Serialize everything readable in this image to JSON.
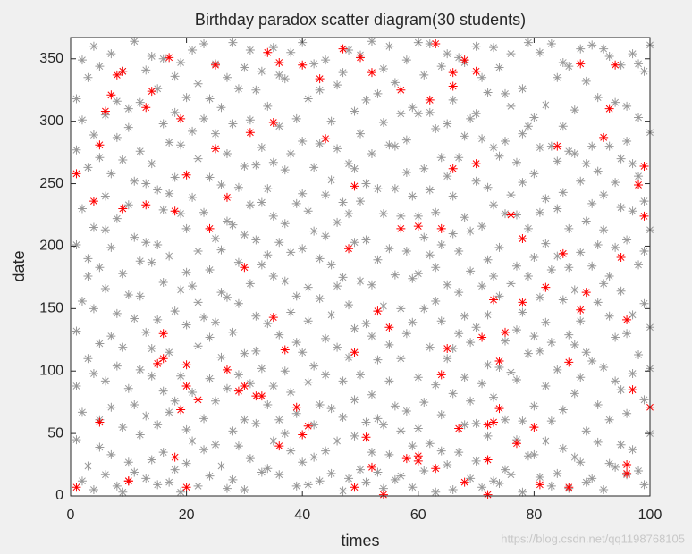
{
  "chart_data": {
    "type": "scatter",
    "title": "Birthday paradox scatter diagram(30 students)",
    "x_label": "times",
    "y_label": "date",
    "watermark": "https://blog.csdn.net/qq1198768105",
    "xlim": [
      0,
      100
    ],
    "xticks": [
      0,
      20,
      40,
      60,
      80,
      100
    ],
    "ylim": [
      0,
      367
    ],
    "yticks": [
      0,
      50,
      100,
      150,
      200,
      250,
      300,
      350
    ],
    "marker": "asterisk",
    "grid": false,
    "x": [
      1,
      2,
      3,
      4,
      5,
      6,
      7,
      8,
      9,
      10,
      11,
      12,
      13,
      14,
      15,
      16,
      17,
      18,
      19,
      20,
      21,
      22,
      23,
      24,
      25,
      26,
      27,
      28,
      29,
      30,
      31,
      32,
      33,
      34,
      35,
      36,
      37,
      38,
      39,
      40,
      41,
      42,
      43,
      44,
      45,
      46,
      47,
      48,
      49,
      50,
      51,
      52,
      53,
      54,
      55,
      56,
      57,
      58,
      59,
      60,
      61,
      62,
      63,
      64,
      65,
      66,
      67,
      68,
      69,
      70,
      71,
      72,
      73,
      74,
      75,
      76,
      77,
      78,
      79,
      80,
      81,
      82,
      83,
      84,
      85,
      86,
      87,
      88,
      89,
      90,
      91,
      92,
      93,
      94,
      95,
      96,
      97,
      98,
      99,
      100
    ],
    "series": [
      {
        "color": "#999999",
        "values": [
          45,
          12,
          190,
          98,
          271,
          17,
          128,
          287,
          55,
          233,
          142,
          315,
          64,
          187,
          245,
          84,
          11,
          336,
          165,
          53,
          292,
          120,
          37,
          255,
          76,
          163,
          6,
          298,
          187,
          61,
          233,
          144,
          19,
          312,
          88,
          203,
          50,
          274,
          123,
          198,
          9,
          346,
          158,
          241,
          70,
          329,
          4,
          266,
          134,
          21,
          317,
          169,
          246,
          57,
          198,
          280,
          16,
          349,
          139,
          224,
          75,
          307,
          183,
          36,
          256,
          118,
          351,
          57,
          212,
          28,
          286,
          145,
          233,
          10,
          322,
          170,
          93,
          251,
          32,
          303,
          116,
          238,
          60,
          192,
          347,
          129,
          274,
          27,
          220,
          108,
          43,
          358,
          176,
          251,
          85,
          312,
          145,
          20,
          236,
          135
        ]
      },
      {
        "color": "#999999",
        "values": [
          132,
          156,
          24,
          215,
          39,
          240,
          354,
          146,
          178,
          86,
          364,
          49,
          203,
          29,
          141,
          298,
          192,
          76,
          226,
          137,
          44,
          270,
          227,
          94,
          206,
          311,
          86,
          52,
          247,
          264,
          30,
          325,
          102,
          73,
          176,
          17,
          261,
          147,
          302,
          27,
          167,
          212,
          73,
          349,
          185,
          44,
          235,
          153,
          203,
          353,
          138,
          81,
          19,
          299,
          121,
          177,
          110,
          259,
          40,
          363,
          150,
          193,
          3,
          271,
          110,
          210,
          35,
          288,
          123,
          306,
          168,
          48,
          359,
          103,
          226,
          17,
          267,
          326,
          114,
          191,
          355,
          44,
          280,
          101,
          243,
          6,
          82,
          195,
          332,
          280,
          155,
          213,
          61,
          127,
          345,
          17,
          266,
          185,
          77,
          291
        ]
      },
      {
        "color": "#999999",
        "values": [
          201,
          230,
          263,
          5,
          183,
          305,
          71,
          8,
          269,
          310,
          73,
          188,
          341,
          266,
          57,
          171,
          115,
          148,
          3,
          319,
          168,
          8,
          302,
          181,
          346,
          24,
          274,
          131,
          97,
          343,
          170,
          58,
          185,
          246,
          359,
          129,
          334,
          36,
          234,
          115,
          318,
          57,
          282,
          126,
          300,
          119,
          92,
          14,
          308,
          172,
          59,
          274,
          189,
          152,
          33,
          246,
          224,
          68,
          311,
          95,
          262,
          42,
          227,
          140,
          354,
          82,
          163,
          223,
          14,
          252,
          90,
          323,
          176,
          272,
          61,
          241,
          184,
          3,
          296,
          72,
          227,
          139,
          362,
          18,
          157,
          214,
          165,
          252,
          52,
          184,
          319,
          103,
          280,
          23,
          231,
          130,
          354,
          303,
          154,
          50
        ]
      },
      {
        "color": "#999999",
        "values": [
          277,
          301,
          110,
          289,
          122,
          166,
          258,
          222,
          340,
          161,
          207,
          101,
          131,
          96,
          326,
          35,
          283,
          255,
          96,
          214,
          357,
          196,
          62,
          16,
          139,
          249,
          335,
          217,
          40,
          114,
          301,
          205,
          279,
          138,
          44,
          296,
          100,
          355,
          8,
          284,
          228,
          104,
          190,
          36,
          253,
          219,
          339,
          111,
          48,
          97,
          250,
          364,
          109,
          226,
          281,
          13,
          306,
          130,
          240,
          178,
          20,
          119,
          294,
          344,
          25,
          317,
          271,
          95,
          180,
          135,
          216,
          247,
          12,
          199,
          124,
          354,
          45,
          147,
          214,
          33,
          159,
          313,
          123,
          230,
          69,
          276,
          31,
          358,
          115,
          14,
          260,
          5,
          144,
          199,
          164,
          284,
          37,
          113,
          340,
          213
        ]
      },
      {
        "color": "#999999",
        "values": [
          318,
          349,
          335,
          150,
          344,
          92,
          199,
          104,
          119,
          27,
          252,
          276,
          14,
          352,
          201,
          229,
          67,
          21,
          281,
          179,
          83,
          330,
          143,
          318,
          41,
          111,
          159,
          363,
          326,
          209,
          90,
          265,
          340,
          22,
          224,
          337,
          172,
          195,
          66,
          363,
          91,
          263,
          12,
          97,
          145,
          278,
          175,
          226,
          77,
          290,
          205,
          128,
          322,
          6,
          360,
          72,
          150,
          196,
          7,
          54,
          337,
          245,
          89,
          201,
          169,
          5,
          130,
          347,
          302,
          58,
          335,
          189,
          79,
          343,
          284,
          99,
          225,
          60,
          363,
          258,
          15,
          88,
          181,
          335,
          296,
          344,
          121,
          95,
          266,
          234,
          73,
          170,
          352,
          315,
          41,
          205,
          98,
          256,
          9,
          361
        ]
      },
      {
        "color": "#999999",
        "values": [
          88,
          67,
          176,
          360,
          61,
          213,
          33,
          316,
          3,
          295,
          19,
          160,
          250,
          118,
          9,
          350,
          242,
          307,
          347,
          26,
          239,
          155,
          362,
          127,
          290,
          197,
          220,
          13,
          154,
          5,
          357,
          116,
          235,
          193,
          267,
          61,
          218,
          83,
          160,
          242,
          140,
          31,
          325,
          208,
          18,
          168,
          63,
          357,
          262,
          236,
          11,
          35,
          62,
          342,
          92,
          331,
          52,
          285,
          174,
          306,
          207,
          362,
          156,
          65,
          298,
          240,
          196,
          144,
          76,
          360,
          7,
          105,
          279,
          160,
          21,
          312,
          133,
          290,
          176,
          128,
          279,
          202,
          8,
          268,
          38,
          183,
          309,
          140,
          11,
          361,
          201,
          241,
          26,
          92,
          270,
          66,
          228,
          346,
          196,
          102
        ]
      },
      {
        "color": "#ff0000",
        "x": [
          1,
          1,
          4,
          5,
          5,
          6,
          7,
          8,
          9,
          9,
          10,
          10,
          13,
          13,
          14,
          15,
          16,
          16,
          17,
          18,
          18,
          19,
          19,
          20,
          20,
          20,
          20,
          22,
          24,
          25,
          25,
          27,
          27,
          29,
          30,
          30,
          31,
          32,
          33,
          34,
          35,
          35,
          36,
          36,
          37,
          39,
          40,
          40,
          41,
          43,
          44,
          47,
          48,
          49,
          49,
          49,
          50,
          51,
          52,
          52,
          53,
          54,
          55,
          57,
          57,
          58,
          60,
          60,
          60,
          62,
          63,
          63,
          64,
          64,
          65,
          66,
          66,
          66,
          67,
          68,
          68,
          70,
          70,
          71,
          72,
          72,
          72,
          73,
          73,
          74,
          74,
          75,
          76,
          77,
          78,
          78,
          80,
          81,
          82,
          84,
          85,
          86,
          86,
          88,
          88,
          89,
          92,
          93,
          94,
          95,
          96,
          96,
          96,
          97,
          98,
          99,
          99,
          100
        ],
        "values": [
          258,
          7,
          236,
          281,
          59,
          308,
          321,
          337,
          340,
          230,
          12,
          12,
          233,
          311,
          324,
          106,
          130,
          110,
          351,
          31,
          228,
          302,
          69,
          257,
          105,
          88,
          7,
          77,
          214,
          345,
          278,
          239,
          101,
          84,
          183,
          88,
          291,
          80,
          80,
          355,
          299,
          143,
          347,
          40,
          117,
          71,
          345,
          49,
          56,
          334,
          286,
          358,
          198,
          248,
          115,
          7,
          351,
          47,
          339,
          23,
          148,
          1,
          135,
          214,
          325,
          30,
          216,
          32,
          28,
          317,
          362,
          22,
          97,
          214,
          118,
          339,
          328,
          262,
          54,
          349,
          11,
          340,
          266,
          127,
          1,
          29,
          57,
          59,
          157,
          108,
          70,
          131,
          225,
          42,
          206,
          155,
          55,
          9,
          167,
          280,
          194,
          107,
          7,
          149,
          346,
          163,
          287,
          310,
          345,
          191,
          141,
          25,
          18,
          85,
          249,
          264,
          224,
          71
        ]
      }
    ]
  }
}
